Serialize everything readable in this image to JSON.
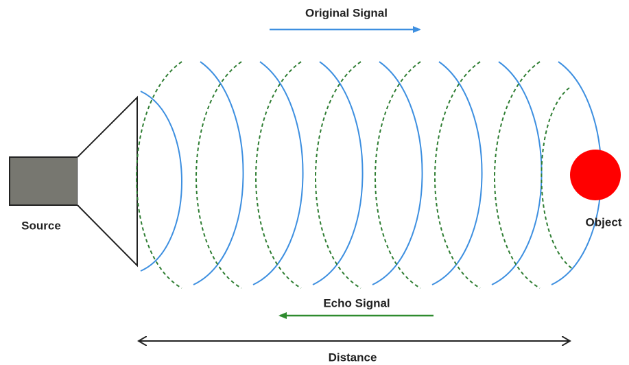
{
  "labels": {
    "original_signal": "Original Signal",
    "echo_signal": "Echo Signal",
    "source": "Source",
    "object": "Object",
    "distance": "Distance"
  }
}
